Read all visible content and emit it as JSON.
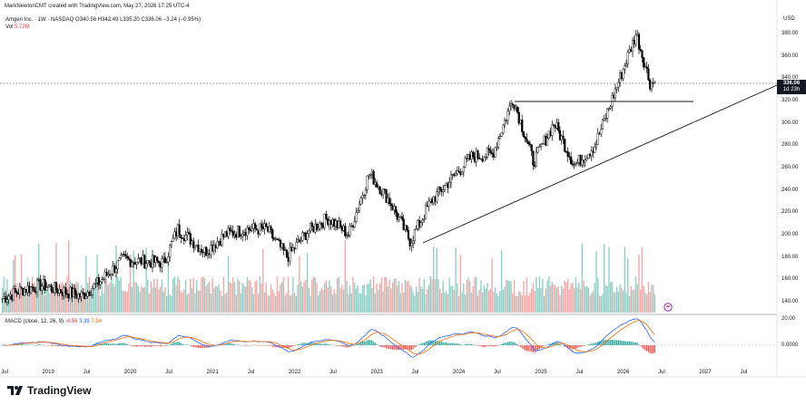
{
  "header": {
    "credit": "MarkNewtonCMT created with TradingView.com, May 27, 2026 17:25 UTC-4",
    "symbol_line": "Amgen Inc. · 1W · NASDAQ",
    "ohlc": "O340.56 H342.49 L335.20 C336.06 −3.24 (−0.95%)",
    "vol_label": "Vol",
    "vol_value": "5.72M"
  },
  "price_axis": {
    "currency": "USD",
    "ticks": [
      "380.00",
      "360.00",
      "340.00",
      "320.00",
      "300.00",
      "280.00",
      "260.00",
      "240.00",
      "220.00",
      "200.00",
      "180.00",
      "160.00",
      "140.00"
    ],
    "last_price": "336.06",
    "countdown": "1d 23h"
  },
  "macd_pane": {
    "legend_label": "MACD (close, 12, 26, 9)",
    "hist_value": "-4.56",
    "macd_value": "3.39",
    "signal_value": "7.94",
    "ticks": [
      "20.00",
      "0.0000"
    ]
  },
  "time_axis": {
    "labels": [
      "Jul",
      "2019",
      "Jul",
      "2020",
      "Jul",
      "2021",
      "Jul",
      "2022",
      "Jul",
      "2023",
      "Jul",
      "2024",
      "Jul",
      "2025",
      "Jul",
      "2026",
      "Jul",
      "2027",
      "Jul"
    ]
  },
  "branding": {
    "name": "TradingView"
  },
  "colors": {
    "up": "#000000",
    "down": "#000000",
    "vol_up": "#8fd1c8",
    "vol_down": "#f4a9a8",
    "macd": "#2962ff",
    "signal": "#ff6d00",
    "hist_pos": "#26a69a",
    "hist_neg": "#ef5350",
    "trendline": "#131722"
  },
  "chart_data": {
    "type": "candlestick",
    "title": "Amgen Inc. · 1W · NASDAQ",
    "ylabel": "USD",
    "ylim": [
      130,
      390
    ],
    "last": 336.06,
    "resistance": 320,
    "trendline": [
      {
        "x": "2023-06",
        "y": 194
      },
      {
        "x": "2027-01",
        "y": 338
      }
    ],
    "approx_closes": [
      {
        "x": "2018-06",
        "y": 142
      },
      {
        "x": "2018-09",
        "y": 150
      },
      {
        "x": "2018-12",
        "y": 155
      },
      {
        "x": "2019-03",
        "y": 150
      },
      {
        "x": "2019-06",
        "y": 145
      },
      {
        "x": "2019-09",
        "y": 160
      },
      {
        "x": "2019-12",
        "y": 178
      },
      {
        "x": "2020-03",
        "y": 176
      },
      {
        "x": "2020-06",
        "y": 175
      },
      {
        "x": "2020-08",
        "y": 205
      },
      {
        "x": "2020-12",
        "y": 185
      },
      {
        "x": "2021-03",
        "y": 200
      },
      {
        "x": "2021-06",
        "y": 205
      },
      {
        "x": "2021-09",
        "y": 205
      },
      {
        "x": "2021-12",
        "y": 180
      },
      {
        "x": "2022-03",
        "y": 203
      },
      {
        "x": "2022-06",
        "y": 215
      },
      {
        "x": "2022-09",
        "y": 200
      },
      {
        "x": "2022-12",
        "y": 255
      },
      {
        "x": "2023-03",
        "y": 230
      },
      {
        "x": "2023-06",
        "y": 194
      },
      {
        "x": "2023-09",
        "y": 230
      },
      {
        "x": "2023-12",
        "y": 250
      },
      {
        "x": "2024-03",
        "y": 270
      },
      {
        "x": "2024-06",
        "y": 272
      },
      {
        "x": "2024-09",
        "y": 322
      },
      {
        "x": "2024-12",
        "y": 265
      },
      {
        "x": "2025-03",
        "y": 300
      },
      {
        "x": "2025-06",
        "y": 262
      },
      {
        "x": "2025-09",
        "y": 280
      },
      {
        "x": "2025-12",
        "y": 330
      },
      {
        "x": "2026-03",
        "y": 380
      },
      {
        "x": "2026-05",
        "y": 336
      }
    ]
  }
}
